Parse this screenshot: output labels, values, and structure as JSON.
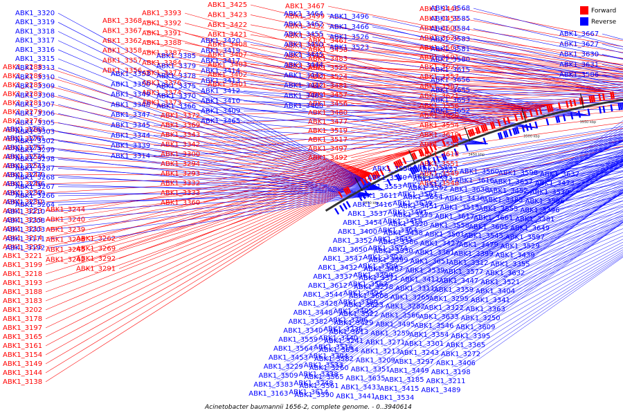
{
  "title": "Acinetobacter baumannii 1656-2, complete genome. - 0..3940614",
  "legend": {
    "items": [
      {
        "label": "Forward",
        "color": "#ff0000"
      },
      {
        "label": "Reverse",
        "color": "#0000ff"
      }
    ]
  },
  "colors": {
    "forward": "#ff0000",
    "reverse": "#0000ff",
    "backbone": "#333333",
    "tick": "#222222"
  },
  "ticks": [
    "3350 kbp",
    "3400 kbp",
    "3450 kbp",
    "3500 kbp",
    "3550 kbp",
    "3600 kbp",
    "3650 kbp",
    "3700 kbp",
    "3750 kbp",
    "3800 kbp",
    "3850 kbp",
    "3900 kbp"
  ],
  "forward_labels": [
    "ABK1_3288",
    "ABK1_3286",
    "ABK1_3285",
    "ABK1_3283",
    "ABK1_3281",
    "ABK1_3279",
    "ABK1_3276",
    "ABK1_3280",
    "ABK1_3277",
    "ABK1_3275",
    "ABK1_3252",
    "ABK1_3251",
    "ABK1_3247",
    "ABK1_3246",
    "ABK1_3237",
    "ABK1_3230",
    "ABK1_3223",
    "ABK1_3219",
    "ABK1_3215",
    "ABK1_3214",
    "ABK1_3225",
    "ABK1_3221",
    "ABK1_3199",
    "ABK1_3218",
    "ABK1_3193",
    "ABK1_3188",
    "ABK1_3183",
    "ABK1_3202",
    "ABK1_3178",
    "ABK1_3197",
    "ABK1_3165",
    "ABK1_3161",
    "ABK1_3154",
    "ABK1_3149",
    "ABK1_3144",
    "ABK1_3138",
    "ABK1_3244",
    "ABK1_3240",
    "ABK1_3239",
    "ABK1_3238",
    "ABK1_3245",
    "ABK1_3242",
    "ABK1_3262",
    "ABK1_3269",
    "ABK1_3292",
    "ABK1_3291",
    "ABK1_3368",
    "ABK1_3367",
    "ABK1_3362",
    "ABK1_3358",
    "ABK1_3357",
    "ABK1_3356",
    "ABK1_3393",
    "ABK1_3392",
    "ABK1_3391",
    "ABK1_3388",
    "ABK1_3387",
    "ABK1_3384",
    "ABK1_3377",
    "ABK1_3376",
    "ABK1_3374",
    "ABK1_3373",
    "ABK1_3372",
    "ABK1_3369",
    "ABK1_3343",
    "ABK1_3342",
    "ABK1_3300",
    "ABK1_3294",
    "ABK1_3293",
    "ABK1_3332",
    "ABK1_3333",
    "ABK1_3360",
    "ABK1_3425",
    "ABK1_3423",
    "ABK1_3422",
    "ABK1_3421",
    "ABK1_3408",
    "ABK1_3407",
    "ABK1_3403",
    "ABK1_3402",
    "ABK1_3401",
    "ABK1_3467",
    "ABK1_3499",
    "ABK1_3532",
    "ABK1_3531",
    "ABK1_3493",
    "ABK1_3528",
    "ABK1_3486",
    "ABK1_3461",
    "ABK1_3458",
    "ABK1_3483",
    "ABK1_3525",
    "ABK1_3524",
    "ABK1_3481",
    "ABK1_3457",
    "ABK1_3456",
    "ABK1_3480",
    "ABK1_3477",
    "ABK1_3519",
    "ABK1_3517",
    "ABK1_3497",
    "ABK1_3492",
    "ABK1_3446",
    "ABK1_3459",
    "ABK1_3600",
    "ABK1_3629",
    "ABK1_3563",
    "ABK1_3591",
    "ABK1_3622",
    "ABK1_3557",
    "ABK1_3587",
    "ABK1_3621",
    "ABK1_3556",
    "ABK1_3620",
    "ABK1_3554",
    "ABK1_3619",
    "ABK1_3552",
    "ABK1_3618",
    "ABK1_3551",
    "ABK1_3549",
    "ABK1_3548"
  ],
  "reverse_labels": [
    "ABK1_3320",
    "ABK1_3319",
    "ABK1_3318",
    "ABK1_3317",
    "ABK1_3316",
    "ABK1_3315",
    "ABK1_3313",
    "ABK1_3310",
    "ABK1_3309",
    "ABK1_3308",
    "ABK1_3307",
    "ABK1_3306",
    "ABK1_3305",
    "ABK1_3303",
    "ABK1_3302",
    "ABK1_3299",
    "ABK1_3298",
    "ABK1_3287",
    "ABK1_3268",
    "ABK1_3267",
    "ABK1_3266",
    "ABK1_3264",
    "ABK1_3263",
    "ABK1_3261",
    "ABK1_3257",
    "ABK1_3274",
    "ABK1_3273",
    "ABK1_3270",
    "ABK1_3256",
    "ABK1_3249",
    "ABK1_3212",
    "ABK1_3210",
    "ABK1_3208",
    "ABK1_3203",
    "ABK1_3171",
    "ABK1_3192",
    "ABK1_3353",
    "ABK1_3350",
    "ABK1_3349",
    "ABK1_3348",
    "ABK1_3347",
    "ABK1_3345",
    "ABK1_3344",
    "ABK1_3339",
    "ABK1_3314",
    "ABK1_3385",
    "ABK1_3379",
    "ABK1_3378",
    "ABK1_3375",
    "ABK1_3370",
    "ABK1_3366",
    "ABK1_3420",
    "ABK1_3419",
    "ABK1_3417",
    "ABK1_3414",
    "ABK1_3413",
    "ABK1_3412",
    "ABK1_3410",
    "ABK1_3409",
    "ABK1_3465",
    "ABK1_3464",
    "ABK1_3462",
    "ABK1_3455",
    "ABK1_3450",
    "ABK1_3445",
    "ABK1_3444",
    "ABK1_3443",
    "ABK1_3442",
    "ABK1_3463",
    "ABK1_3460",
    "ABK1_3496",
    "ABK1_3466",
    "ABK1_3526",
    "ABK1_3523",
    "ABK1_3568",
    "ABK1_3585",
    "ABK1_3584",
    "ABK1_3583",
    "ABK1_3581",
    "ABK1_3580",
    "ABK1_3615",
    "ABK1_3656",
    "ABK1_3655",
    "ABK1_3653",
    "ABK1_3652",
    "ABK1_3667",
    "ABK1_3627",
    "ABK1_3630",
    "ABK1_3631",
    "ABK1_3586",
    "ABK1_3589",
    "ABK1_3550",
    "ABK1_3527",
    "ABK1_3560",
    "ABK1_3598",
    "ABK1_3637",
    "ABK1_3498",
    "ABK1_3540",
    "ABK1_3573",
    "ABK1_3616",
    "ABK1_3657",
    "ABK1_3473",
    "ABK1_3514",
    "ABK1_3553",
    "ABK1_3592",
    "ABK1_3638",
    "ABK1_3452",
    "ABK1_3530",
    "ABK1_3567",
    "ABK1_3611",
    "ABK1_3654",
    "ABK1_3436",
    "ABK1_3485",
    "ABK1_3596",
    "ABK1_3639",
    "ABK1_3416",
    "ABK1_3451",
    "ABK1_3515",
    "ABK1_3555",
    "ABK1_3396",
    "ABK1_3491",
    "ABK1_3537",
    "ABK1_3575",
    "ABK1_3617",
    "ABK1_3661",
    "ABK1_3381",
    "ABK1_3418",
    "ABK1_3454",
    "ABK1_3520",
    "ABK1_3558",
    "ABK1_3605",
    "ABK1_3649",
    "ABK1_3364",
    "ABK1_3400",
    "ABK1_3438",
    "ABK1_3501",
    "ABK1_3545",
    "ABK1_3597",
    "ABK1_3645",
    "ABK1_3352",
    "ABK1_3386",
    "ABK1_3427",
    "ABK1_3479",
    "ABK1_3529",
    "ABK1_3574",
    "ABK1_3650",
    "ABK1_3330",
    "ABK1_3361",
    "ABK1_3399",
    "ABK1_3439",
    "ABK1_3502",
    "ABK1_3547",
    "ABK1_3599",
    "ABK1_3651",
    "ABK1_3312",
    "ABK1_3355",
    "ABK1_3389",
    "ABK1_3432",
    "ABK1_3487",
    "ABK1_3539",
    "ABK1_3577",
    "ABK1_3632",
    "ABK1_3290",
    "ABK1_3337",
    "ABK1_3371",
    "ABK1_3411",
    "ABK1_3447",
    "ABK1_3521",
    "ABK1_3562",
    "ABK1_3612",
    "ABK1_3278",
    "ABK1_3311",
    "ABK1_3359",
    "ABK1_3404",
    "ABK1_3494",
    "ABK1_3544",
    "ABK1_3608",
    "ABK1_3265",
    "ABK1_3295",
    "ABK1_3341",
    "ABK1_3380",
    "ABK1_3428",
    "ABK1_3623",
    "ABK1_3282",
    "ABK1_3322",
    "ABK1_3363",
    "ABK1_3405",
    "ABK1_3448",
    "ABK1_3522",
    "ABK1_3566",
    "ABK1_3633",
    "ABK1_3250",
    "ABK1_3296",
    "ABK1_3382",
    "ABK1_3429",
    "ABK1_3495",
    "ABK1_3546",
    "ABK1_3609",
    "ABK1_3236",
    "ABK1_3340",
    "ABK1_3613",
    "ABK1_3259",
    "ABK1_3354",
    "ABK1_3395",
    "ABK1_3440",
    "ABK1_3559",
    "ABK1_3241",
    "ABK1_3271",
    "ABK1_3301",
    "ABK1_3365",
    "ABK1_3516",
    "ABK1_3564",
    "ABK1_3634",
    "ABK1_3213",
    "ABK1_3243",
    "ABK1_3272",
    "ABK1_3304",
    "ABK1_3453",
    "ABK1_3582",
    "ABK1_3209",
    "ABK1_3297",
    "ABK1_3406",
    "ABK1_3533",
    "ABK1_3229",
    "ABK1_3260",
    "ABK1_3351",
    "ABK1_3449",
    "ABK1_3198",
    "ABK1_3338",
    "ABK1_3509",
    "ABK1_3565",
    "ABK1_3635",
    "ABK1_3185",
    "ABK1_3211",
    "ABK1_3248",
    "ABK1_3383",
    "ABK1_3561",
    "ABK1_3433",
    "ABK1_3415",
    "ABK1_3489",
    "ABK1_3614",
    "ABK1_3163",
    "ABK1_3390",
    "ABK1_3441",
    "ABK1_3534"
  ]
}
